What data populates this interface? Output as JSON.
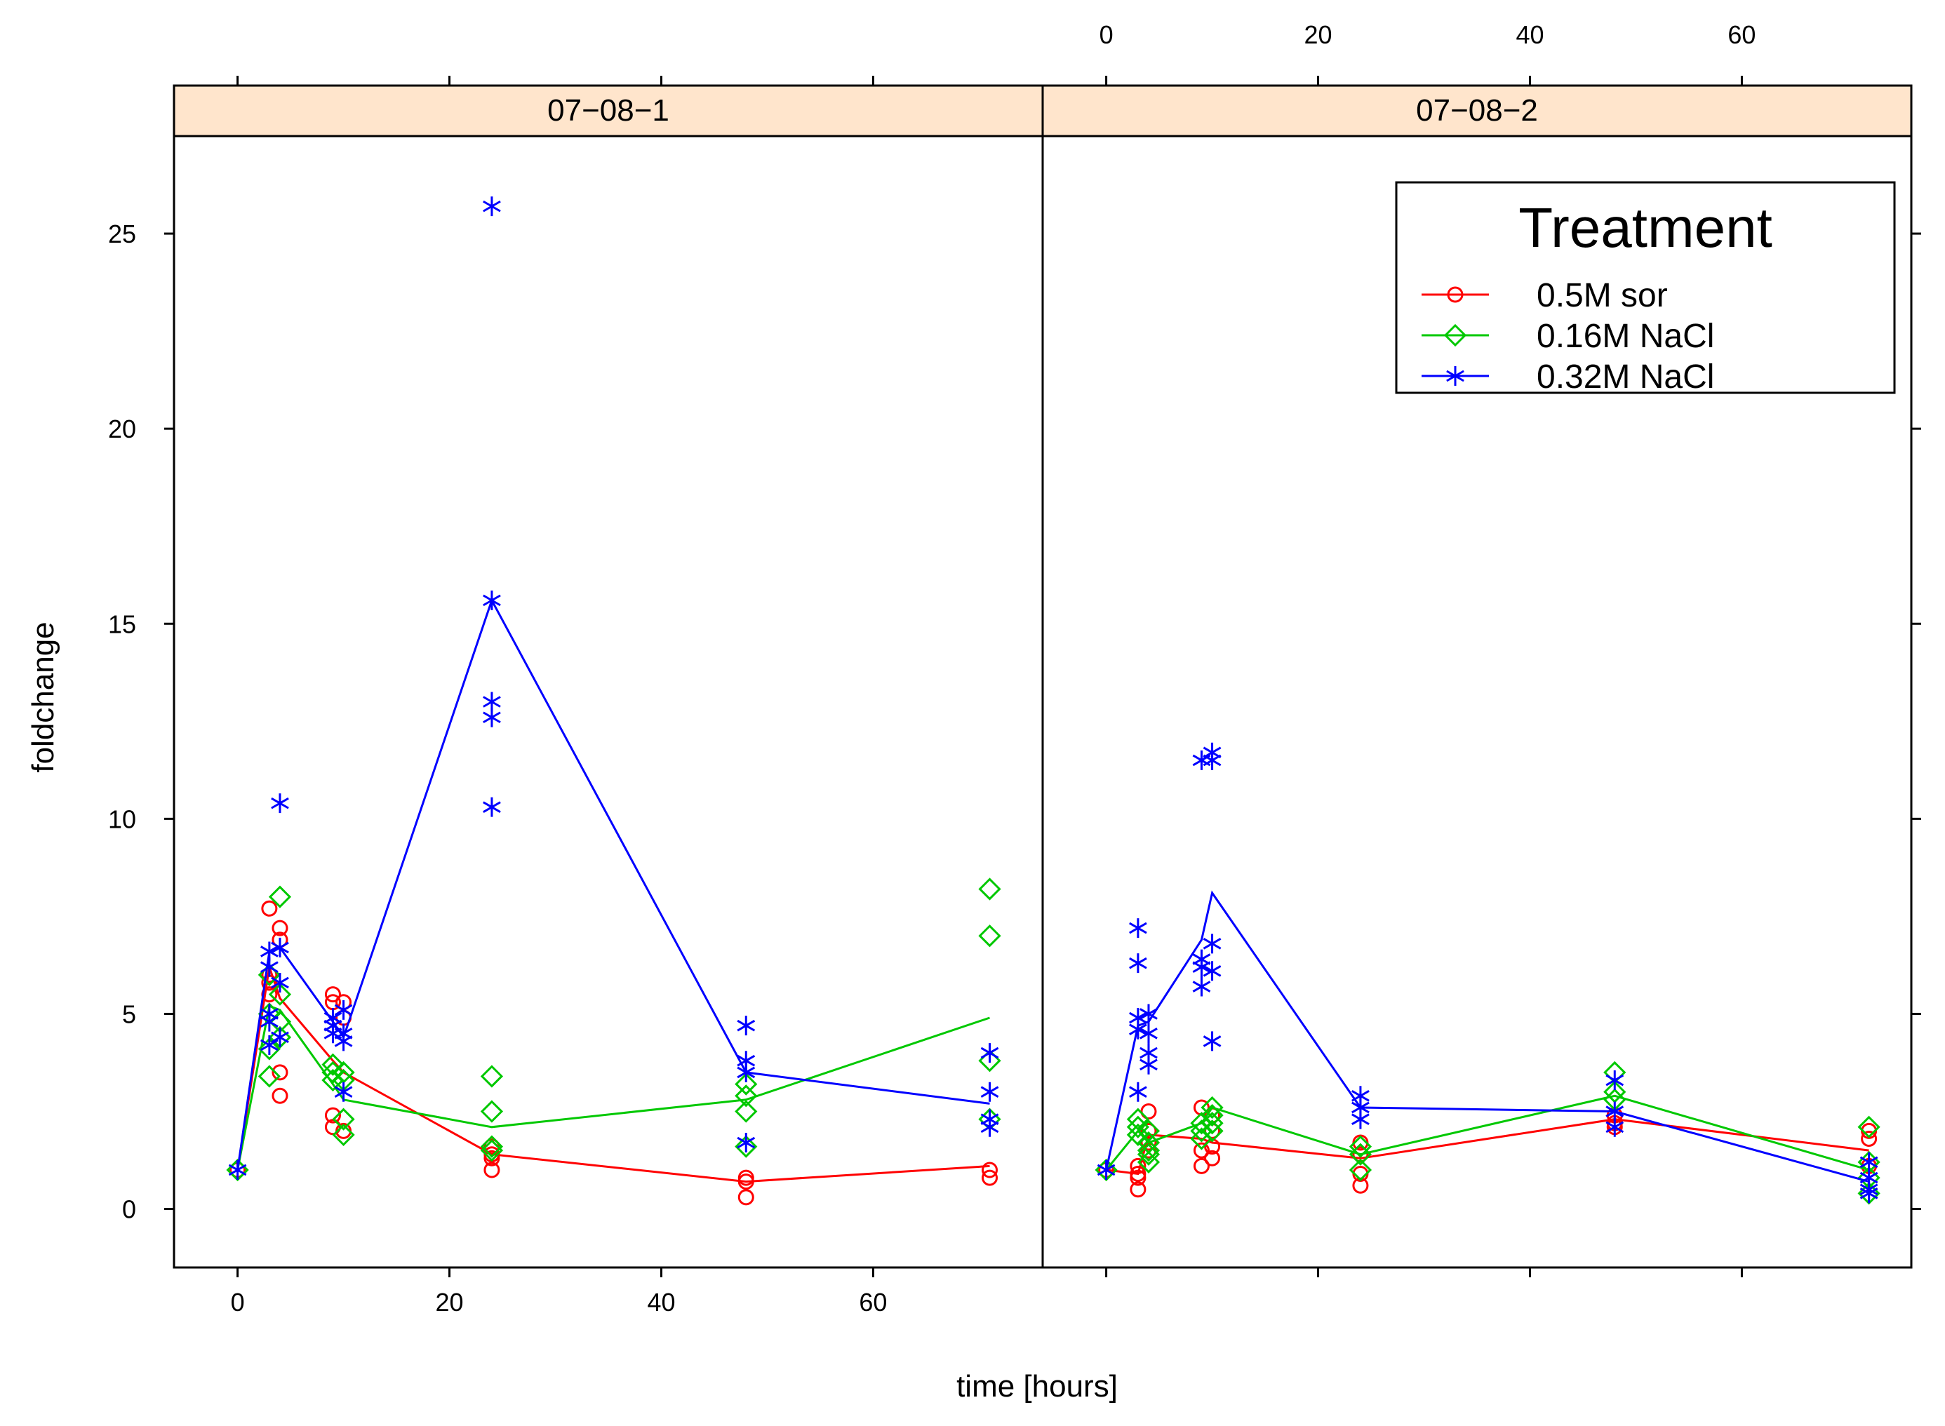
{
  "chart_data": {
    "type": "scatter",
    "xlabel": "time [hours]",
    "ylabel": "foldchange",
    "xlim": [
      -6,
      76
    ],
    "ylim": [
      -1.5,
      27.5
    ],
    "x_ticks": [
      0,
      20,
      40,
      60
    ],
    "y_ticks": [
      0,
      5,
      10,
      15,
      20,
      25
    ],
    "legend": {
      "title": "Treatment",
      "placement": "top-right",
      "entries": [
        {
          "label": "0.5M sor",
          "series": "sor",
          "color": "#ff0000",
          "symbol": "circle"
        },
        {
          "label": "0.16M NaCl",
          "series": "nacl016",
          "color": "#00c800",
          "symbol": "diamond"
        },
        {
          "label": "0.32M NaCl",
          "series": "nacl032",
          "color": "#0000ff",
          "symbol": "asterisk"
        }
      ]
    },
    "panels": [
      {
        "strip": "07−08−1",
        "series": [
          {
            "name": "0.5M sor",
            "color": "#ff0000",
            "symbol": "circle",
            "points": [
              [
                0,
                1
              ],
              [
                3,
                7.7
              ],
              [
                3,
                6
              ],
              [
                3,
                5.8
              ],
              [
                3,
                5.5
              ],
              [
                4,
                7.2
              ],
              [
                4,
                6.9
              ],
              [
                4,
                3.5
              ],
              [
                4,
                2.9
              ],
              [
                9,
                5.5
              ],
              [
                9,
                5.3
              ],
              [
                9,
                2.4
              ],
              [
                9,
                2.1
              ],
              [
                10,
                5.3
              ],
              [
                10,
                4.9
              ],
              [
                10,
                2
              ],
              [
                24,
                1.6
              ],
              [
                24,
                1.4
              ],
              [
                24,
                1.3
              ],
              [
                24,
                1
              ],
              [
                48,
                0.8
              ],
              [
                48,
                0.7
              ],
              [
                48,
                0.3
              ],
              [
                71,
                1
              ],
              [
                71,
                0.8
              ]
            ],
            "line_x": [
              0,
              3,
              4,
              9,
              10,
              24,
              48,
              71
            ],
            "line_y": [
              1,
              6.2,
              5.4,
              3.8,
              3.5,
              1.4,
              0.7,
              1.1
            ]
          },
          {
            "name": "0.16M NaCl",
            "color": "#00c800",
            "symbol": "diamond",
            "points": [
              [
                0,
                1
              ],
              [
                3,
                6
              ],
              [
                3,
                5
              ],
              [
                3,
                4.1
              ],
              [
                3,
                3.4
              ],
              [
                4,
                8
              ],
              [
                4,
                5.5
              ],
              [
                4,
                4.8
              ],
              [
                4,
                4.4
              ],
              [
                9,
                3.7
              ],
              [
                9,
                3.5
              ],
              [
                9,
                3.3
              ],
              [
                10,
                3.5
              ],
              [
                10,
                3.3
              ],
              [
                10,
                2.3
              ],
              [
                10,
                1.9
              ],
              [
                24,
                3.4
              ],
              [
                24,
                2.5
              ],
              [
                24,
                1.6
              ],
              [
                24,
                1.5
              ],
              [
                48,
                3.2
              ],
              [
                48,
                2.9
              ],
              [
                48,
                2.5
              ],
              [
                48,
                1.6
              ],
              [
                71,
                8.2
              ],
              [
                71,
                7
              ],
              [
                71,
                3.8
              ],
              [
                71,
                2.3
              ]
            ],
            "line_x": [
              0,
              3,
              4,
              9,
              10,
              24,
              48,
              71
            ],
            "line_y": [
              1,
              5.2,
              5.1,
              3.2,
              2.8,
              2.1,
              2.8,
              4.9
            ]
          },
          {
            "name": "0.32M NaCl",
            "color": "#0000ff",
            "symbol": "asterisk",
            "points": [
              [
                0,
                1
              ],
              [
                3,
                6.6
              ],
              [
                3,
                6.2
              ],
              [
                3,
                5
              ],
              [
                3,
                4.8
              ],
              [
                3,
                4.2
              ],
              [
                4,
                10.4
              ],
              [
                4,
                6.7
              ],
              [
                4,
                5.8
              ],
              [
                4,
                4.4
              ],
              [
                9,
                4.9
              ],
              [
                9,
                4.7
              ],
              [
                9,
                4.5
              ],
              [
                10,
                5.1
              ],
              [
                10,
                4.5
              ],
              [
                10,
                4.3
              ],
              [
                10,
                3
              ],
              [
                24,
                25.7
              ],
              [
                24,
                15.6
              ],
              [
                24,
                13
              ],
              [
                24,
                12.6
              ],
              [
                24,
                10.3
              ],
              [
                48,
                4.7
              ],
              [
                48,
                3.8
              ],
              [
                48,
                3.5
              ],
              [
                48,
                1.7
              ],
              [
                71,
                4
              ],
              [
                71,
                3
              ],
              [
                71,
                2.3
              ],
              [
                71,
                2.1
              ]
            ],
            "line_x": [
              0,
              3,
              4,
              9,
              10,
              24,
              48,
              71
            ],
            "line_y": [
              1,
              6.6,
              6.7,
              4.8,
              4.4,
              15.6,
              3.5,
              2.7
            ]
          }
        ]
      },
      {
        "strip": "07−08−2",
        "series": [
          {
            "name": "0.5M sor",
            "color": "#ff0000",
            "symbol": "circle",
            "points": [
              [
                0,
                1
              ],
              [
                3,
                1.1
              ],
              [
                3,
                0.9
              ],
              [
                3,
                0.8
              ],
              [
                3,
                0.5
              ],
              [
                4,
                2.5
              ],
              [
                4,
                2
              ],
              [
                4,
                1.7
              ],
              [
                4,
                1.5
              ],
              [
                9,
                2.6
              ],
              [
                9,
                1.5
              ],
              [
                9,
                1.1
              ],
              [
                10,
                2.4
              ],
              [
                10,
                2
              ],
              [
                10,
                1.6
              ],
              [
                10,
                1.3
              ],
              [
                24,
                1.7
              ],
              [
                24,
                1.4
              ],
              [
                24,
                0.9
              ],
              [
                24,
                0.6
              ],
              [
                48,
                2.4
              ],
              [
                48,
                2.2
              ],
              [
                48,
                2.1
              ],
              [
                72,
                2
              ],
              [
                72,
                1.8
              ],
              [
                72,
                1.1
              ]
            ],
            "line_x": [
              0,
              3,
              4,
              9,
              10,
              24,
              48,
              72
            ],
            "line_y": [
              1,
              0.9,
              1.9,
              1.8,
              1.7,
              1.3,
              2.3,
              1.5
            ]
          },
          {
            "name": "0.16M NaCl",
            "color": "#00c800",
            "symbol": "diamond",
            "points": [
              [
                0,
                1
              ],
              [
                3,
                2.3
              ],
              [
                3,
                2.1
              ],
              [
                3,
                1.9
              ],
              [
                4,
                2
              ],
              [
                4,
                1.7
              ],
              [
                4,
                1.5
              ],
              [
                4,
                1.4
              ],
              [
                4,
                1.2
              ],
              [
                9,
                2.2
              ],
              [
                9,
                2
              ],
              [
                9,
                1.8
              ],
              [
                10,
                2.6
              ],
              [
                10,
                2.4
              ],
              [
                10,
                2.2
              ],
              [
                10,
                2
              ],
              [
                24,
                1.6
              ],
              [
                24,
                1.4
              ],
              [
                24,
                1
              ],
              [
                48,
                3.5
              ],
              [
                48,
                3
              ],
              [
                48,
                2.8
              ],
              [
                72,
                2.1
              ],
              [
                72,
                1.2
              ],
              [
                72,
                0.8
              ],
              [
                72,
                0.4
              ]
            ],
            "line_x": [
              0,
              3,
              4,
              9,
              10,
              24,
              48,
              72
            ],
            "line_y": [
              1,
              2,
              1.7,
              2.2,
              2.6,
              1.4,
              2.9,
              1
            ]
          },
          {
            "name": "0.32M NaCl",
            "color": "#0000ff",
            "symbol": "asterisk",
            "points": [
              [
                0,
                1
              ],
              [
                3,
                7.2
              ],
              [
                3,
                6.3
              ],
              [
                3,
                4.9
              ],
              [
                3,
                4.6
              ],
              [
                3,
                3
              ],
              [
                4,
                5
              ],
              [
                4,
                4.5
              ],
              [
                4,
                4
              ],
              [
                4,
                3.7
              ],
              [
                9,
                11.5
              ],
              [
                9,
                6.4
              ],
              [
                9,
                6.2
              ],
              [
                9,
                5.7
              ],
              [
                10,
                11.7
              ],
              [
                10,
                11.5
              ],
              [
                10,
                6.8
              ],
              [
                10,
                6.1
              ],
              [
                10,
                4.3
              ],
              [
                24,
                2.9
              ],
              [
                24,
                2.6
              ],
              [
                24,
                2.3
              ],
              [
                48,
                3.3
              ],
              [
                48,
                2.5
              ],
              [
                48,
                2.1
              ],
              [
                72,
                1.2
              ],
              [
                72,
                0.8
              ],
              [
                72,
                0.5
              ],
              [
                72,
                0.4
              ]
            ],
            "line_x": [
              0,
              3,
              4,
              9,
              10,
              24,
              48,
              72
            ],
            "line_y": [
              1,
              4.7,
              4.8,
              6.9,
              8.1,
              2.6,
              2.5,
              0.7
            ]
          }
        ]
      }
    ]
  }
}
